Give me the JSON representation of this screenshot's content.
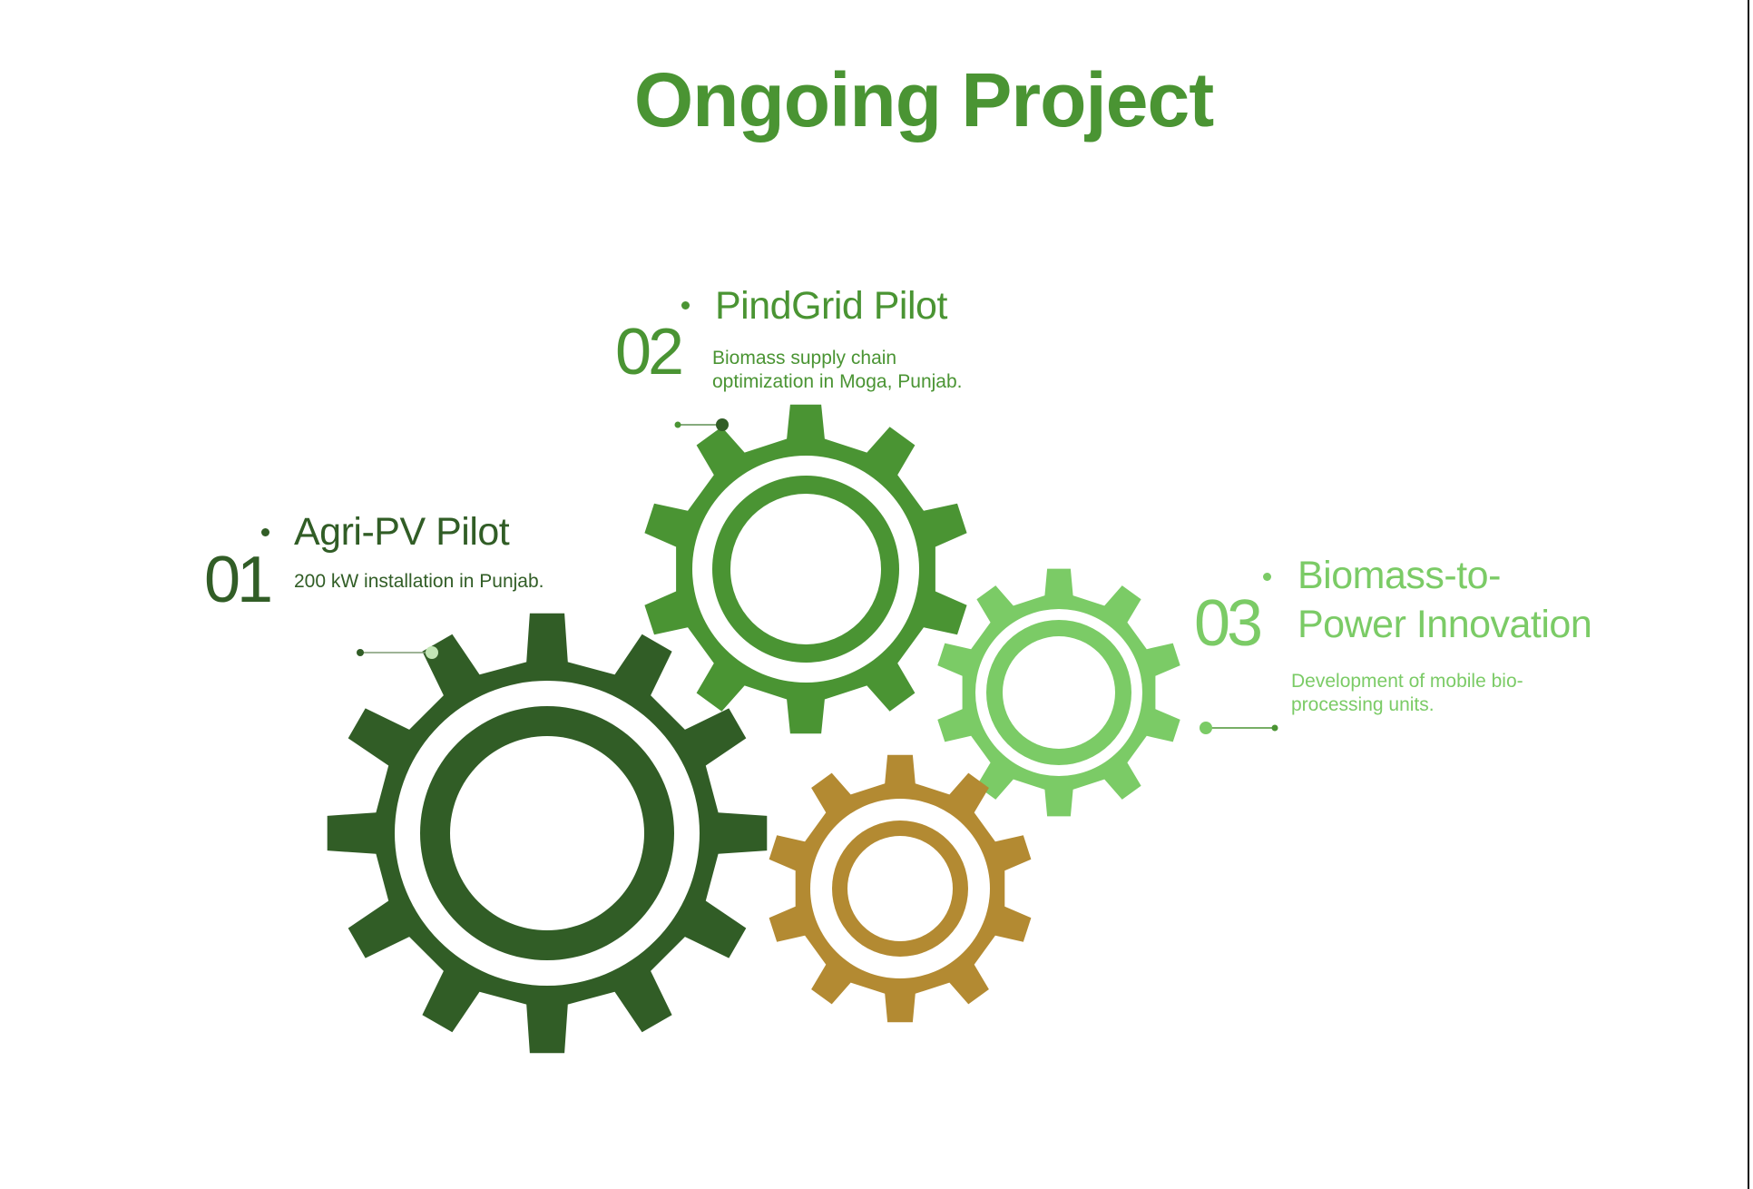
{
  "page": {
    "title": "Ongoing Project"
  },
  "colors": {
    "title": "#4a9433",
    "project_1": "#315d26",
    "project_2": "#4a9433",
    "project_3": "#7bcb66",
    "gear_gold": "#b38a32",
    "connector_light": "#c2e5b5"
  },
  "projects": [
    {
      "number": "01",
      "title": "Agri-PV Pilot",
      "description": "200 kW installation in Punjab."
    },
    {
      "number": "02",
      "title": "PindGrid Pilot",
      "description_lines": [
        "Biomass supply chain",
        "optimization in Moga, Punjab."
      ]
    },
    {
      "number": "03",
      "title_lines": [
        "Biomass-to-",
        "Power Innovation"
      ],
      "description_lines": [
        "Development of mobile bio-",
        "processing units."
      ]
    }
  ]
}
